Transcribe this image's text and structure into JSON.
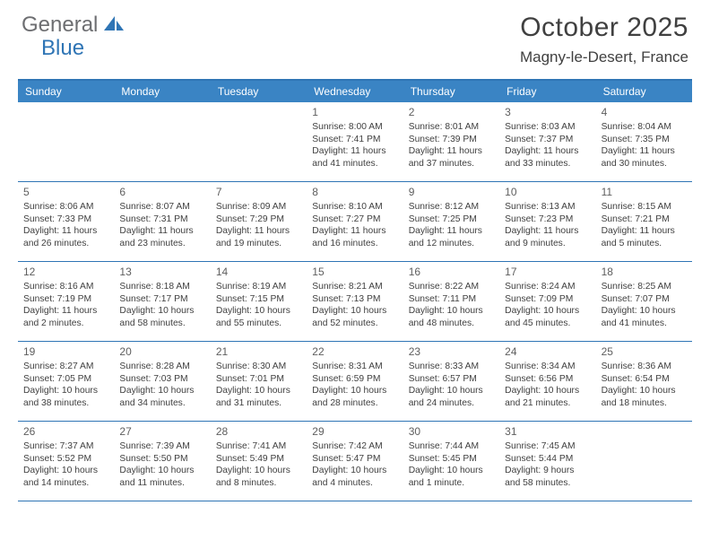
{
  "logo": {
    "text1": "General",
    "text2": "Blue"
  },
  "title": "October 2025",
  "location": "Magny-le-Desert, France",
  "day_headers": [
    "Sunday",
    "Monday",
    "Tuesday",
    "Wednesday",
    "Thursday",
    "Friday",
    "Saturday"
  ],
  "colors": {
    "header_bg": "#3a84c4",
    "header_border": "#2f75b5",
    "text_dark": "#404040",
    "text_gray": "#5e5e5e",
    "logo_gray": "#6d6e71",
    "logo_blue": "#2f75b5",
    "bg": "#ffffff"
  },
  "weeks": [
    [
      null,
      null,
      null,
      {
        "n": "1",
        "sr": "Sunrise: 8:00 AM",
        "ss": "Sunset: 7:41 PM",
        "d1": "Daylight: 11 hours",
        "d2": "and 41 minutes."
      },
      {
        "n": "2",
        "sr": "Sunrise: 8:01 AM",
        "ss": "Sunset: 7:39 PM",
        "d1": "Daylight: 11 hours",
        "d2": "and 37 minutes."
      },
      {
        "n": "3",
        "sr": "Sunrise: 8:03 AM",
        "ss": "Sunset: 7:37 PM",
        "d1": "Daylight: 11 hours",
        "d2": "and 33 minutes."
      },
      {
        "n": "4",
        "sr": "Sunrise: 8:04 AM",
        "ss": "Sunset: 7:35 PM",
        "d1": "Daylight: 11 hours",
        "d2": "and 30 minutes."
      }
    ],
    [
      {
        "n": "5",
        "sr": "Sunrise: 8:06 AM",
        "ss": "Sunset: 7:33 PM",
        "d1": "Daylight: 11 hours",
        "d2": "and 26 minutes."
      },
      {
        "n": "6",
        "sr": "Sunrise: 8:07 AM",
        "ss": "Sunset: 7:31 PM",
        "d1": "Daylight: 11 hours",
        "d2": "and 23 minutes."
      },
      {
        "n": "7",
        "sr": "Sunrise: 8:09 AM",
        "ss": "Sunset: 7:29 PM",
        "d1": "Daylight: 11 hours",
        "d2": "and 19 minutes."
      },
      {
        "n": "8",
        "sr": "Sunrise: 8:10 AM",
        "ss": "Sunset: 7:27 PM",
        "d1": "Daylight: 11 hours",
        "d2": "and 16 minutes."
      },
      {
        "n": "9",
        "sr": "Sunrise: 8:12 AM",
        "ss": "Sunset: 7:25 PM",
        "d1": "Daylight: 11 hours",
        "d2": "and 12 minutes."
      },
      {
        "n": "10",
        "sr": "Sunrise: 8:13 AM",
        "ss": "Sunset: 7:23 PM",
        "d1": "Daylight: 11 hours",
        "d2": "and 9 minutes."
      },
      {
        "n": "11",
        "sr": "Sunrise: 8:15 AM",
        "ss": "Sunset: 7:21 PM",
        "d1": "Daylight: 11 hours",
        "d2": "and 5 minutes."
      }
    ],
    [
      {
        "n": "12",
        "sr": "Sunrise: 8:16 AM",
        "ss": "Sunset: 7:19 PM",
        "d1": "Daylight: 11 hours",
        "d2": "and 2 minutes."
      },
      {
        "n": "13",
        "sr": "Sunrise: 8:18 AM",
        "ss": "Sunset: 7:17 PM",
        "d1": "Daylight: 10 hours",
        "d2": "and 58 minutes."
      },
      {
        "n": "14",
        "sr": "Sunrise: 8:19 AM",
        "ss": "Sunset: 7:15 PM",
        "d1": "Daylight: 10 hours",
        "d2": "and 55 minutes."
      },
      {
        "n": "15",
        "sr": "Sunrise: 8:21 AM",
        "ss": "Sunset: 7:13 PM",
        "d1": "Daylight: 10 hours",
        "d2": "and 52 minutes."
      },
      {
        "n": "16",
        "sr": "Sunrise: 8:22 AM",
        "ss": "Sunset: 7:11 PM",
        "d1": "Daylight: 10 hours",
        "d2": "and 48 minutes."
      },
      {
        "n": "17",
        "sr": "Sunrise: 8:24 AM",
        "ss": "Sunset: 7:09 PM",
        "d1": "Daylight: 10 hours",
        "d2": "and 45 minutes."
      },
      {
        "n": "18",
        "sr": "Sunrise: 8:25 AM",
        "ss": "Sunset: 7:07 PM",
        "d1": "Daylight: 10 hours",
        "d2": "and 41 minutes."
      }
    ],
    [
      {
        "n": "19",
        "sr": "Sunrise: 8:27 AM",
        "ss": "Sunset: 7:05 PM",
        "d1": "Daylight: 10 hours",
        "d2": "and 38 minutes."
      },
      {
        "n": "20",
        "sr": "Sunrise: 8:28 AM",
        "ss": "Sunset: 7:03 PM",
        "d1": "Daylight: 10 hours",
        "d2": "and 34 minutes."
      },
      {
        "n": "21",
        "sr": "Sunrise: 8:30 AM",
        "ss": "Sunset: 7:01 PM",
        "d1": "Daylight: 10 hours",
        "d2": "and 31 minutes."
      },
      {
        "n": "22",
        "sr": "Sunrise: 8:31 AM",
        "ss": "Sunset: 6:59 PM",
        "d1": "Daylight: 10 hours",
        "d2": "and 28 minutes."
      },
      {
        "n": "23",
        "sr": "Sunrise: 8:33 AM",
        "ss": "Sunset: 6:57 PM",
        "d1": "Daylight: 10 hours",
        "d2": "and 24 minutes."
      },
      {
        "n": "24",
        "sr": "Sunrise: 8:34 AM",
        "ss": "Sunset: 6:56 PM",
        "d1": "Daylight: 10 hours",
        "d2": "and 21 minutes."
      },
      {
        "n": "25",
        "sr": "Sunrise: 8:36 AM",
        "ss": "Sunset: 6:54 PM",
        "d1": "Daylight: 10 hours",
        "d2": "and 18 minutes."
      }
    ],
    [
      {
        "n": "26",
        "sr": "Sunrise: 7:37 AM",
        "ss": "Sunset: 5:52 PM",
        "d1": "Daylight: 10 hours",
        "d2": "and 14 minutes."
      },
      {
        "n": "27",
        "sr": "Sunrise: 7:39 AM",
        "ss": "Sunset: 5:50 PM",
        "d1": "Daylight: 10 hours",
        "d2": "and 11 minutes."
      },
      {
        "n": "28",
        "sr": "Sunrise: 7:41 AM",
        "ss": "Sunset: 5:49 PM",
        "d1": "Daylight: 10 hours",
        "d2": "and 8 minutes."
      },
      {
        "n": "29",
        "sr": "Sunrise: 7:42 AM",
        "ss": "Sunset: 5:47 PM",
        "d1": "Daylight: 10 hours",
        "d2": "and 4 minutes."
      },
      {
        "n": "30",
        "sr": "Sunrise: 7:44 AM",
        "ss": "Sunset: 5:45 PM",
        "d1": "Daylight: 10 hours",
        "d2": "and 1 minute."
      },
      {
        "n": "31",
        "sr": "Sunrise: 7:45 AM",
        "ss": "Sunset: 5:44 PM",
        "d1": "Daylight: 9 hours",
        "d2": "and 58 minutes."
      },
      null
    ]
  ]
}
